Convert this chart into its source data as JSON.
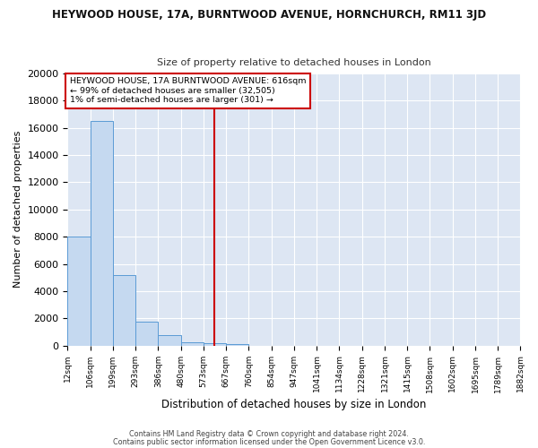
{
  "title": "HEYWOOD HOUSE, 17A, BURNTWOOD AVENUE, HORNCHURCH, RM11 3JD",
  "subtitle": "Size of property relative to detached houses in London",
  "xlabel": "Distribution of detached houses by size in London",
  "ylabel": "Number of detached properties",
  "bar_color": "#c5d9f0",
  "bar_edge_color": "#5b9bd5",
  "background_color": "#ffffff",
  "plot_bg_color": "#dde6f3",
  "grid_color": "#ffffff",
  "marker_line_color": "#cc0000",
  "marker_value": 616,
  "annotation_line1": "HEYWOOD HOUSE, 17A BURNTWOOD AVENUE: 616sqm",
  "annotation_line2": "← 99% of detached houses are smaller (32,505)",
  "annotation_line3": "1% of semi-detached houses are larger (301) →",
  "annotation_box_color": "#ffffff",
  "annotation_box_edge": "#cc0000",
  "footer1": "Contains HM Land Registry data © Crown copyright and database right 2024.",
  "footer2": "Contains public sector information licensed under the Open Government Licence v3.0.",
  "bin_edges": [
    12,
    106,
    199,
    293,
    386,
    480,
    573,
    667,
    760,
    854,
    947,
    1041,
    1134,
    1228,
    1321,
    1415,
    1508,
    1602,
    1695,
    1789,
    1882
  ],
  "bin_labels": [
    "12sqm",
    "106sqm",
    "199sqm",
    "293sqm",
    "386sqm",
    "480sqm",
    "573sqm",
    "667sqm",
    "760sqm",
    "854sqm",
    "947sqm",
    "1041sqm",
    "1134sqm",
    "1228sqm",
    "1321sqm",
    "1415sqm",
    "1508sqm",
    "1602sqm",
    "1695sqm",
    "1789sqm",
    "1882sqm"
  ],
  "counts": [
    8000,
    16500,
    5200,
    1750,
    750,
    250,
    200,
    100,
    0,
    0,
    0,
    0,
    0,
    0,
    0,
    0,
    0,
    0,
    0,
    0
  ],
  "ylim": [
    0,
    20000
  ],
  "yticks": [
    0,
    2000,
    4000,
    6000,
    8000,
    10000,
    12000,
    14000,
    16000,
    18000,
    20000
  ]
}
